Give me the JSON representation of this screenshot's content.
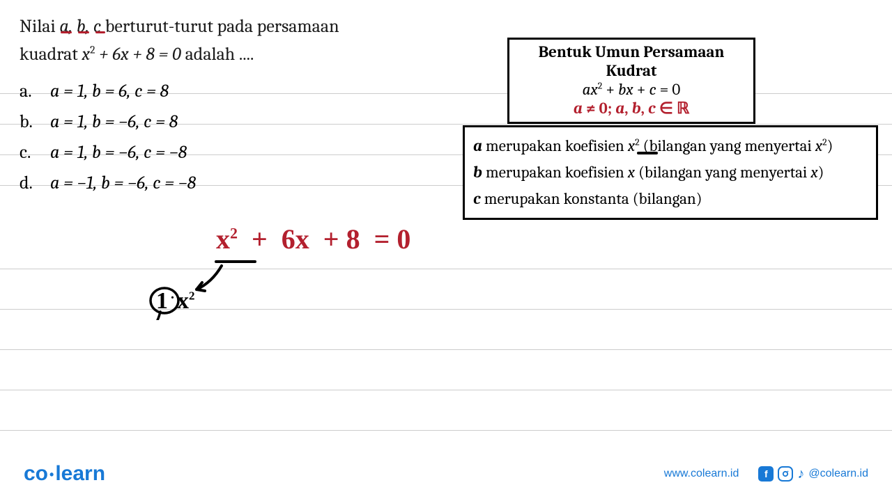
{
  "colors": {
    "text": "#1a1a1a",
    "red": "#b3202e",
    "brand": "#1879d6",
    "ruling": "#cccccc",
    "black": "#000000"
  },
  "question": {
    "line1_prefix": "Nilai ",
    "line1_vars": "a, b, c",
    "line1_suffix": " berturut-turut pada persamaan",
    "line2_prefix": "kuadrat ",
    "line2_eq_html": "x² + 6x + 8 = 0",
    "line2_suffix": " adalah ...."
  },
  "options": [
    {
      "label": "a.",
      "text": "a = 1, b = 6, c = 8"
    },
    {
      "label": "b.",
      "text": "a = 1, b = −6, c = 8"
    },
    {
      "label": "c.",
      "text": "a = 1, b = −6, c = −8"
    },
    {
      "label": "d.",
      "text": "a = −1, b = −6, c = −8"
    }
  ],
  "general_box": {
    "title": "Bentuk Umun Persamaan Kudrat",
    "formula": "ax² + bx + c = 0",
    "condition": "a ≠ 0; a, b, c ∈ ℝ"
  },
  "desc_box": {
    "l1_pre": "a",
    "l1_mid": " merupakan koefisien ",
    "l1_var": "x²",
    "l1_post": " (bilangan yang menyertai ",
    "l1_var2": "x²",
    "l1_end": ")",
    "l2_pre": "b",
    "l2_mid": " merupakan koefisien ",
    "l2_var": "x",
    "l2_post": " (bilangan yang menyertai ",
    "l2_var2": "x",
    "l2_end": ")",
    "l3_pre": "c",
    "l3_text": " merupakan konstanta (bilangan)"
  },
  "handwriting": {
    "equation": "x² + 6x + 8 = 0",
    "annotation": "1·x²",
    "eq_color": "#b3202e",
    "ann_color": "#000000",
    "eq_fontsize": 40,
    "ann_fontsize": 34
  },
  "footer": {
    "logo_co": "co",
    "logo_learn": "learn",
    "url": "www.colearn.id",
    "handle": "@colearn.id"
  },
  "ruling_lines_y": [
    134,
    178,
    222,
    266,
    386,
    444,
    502,
    560,
    618
  ]
}
